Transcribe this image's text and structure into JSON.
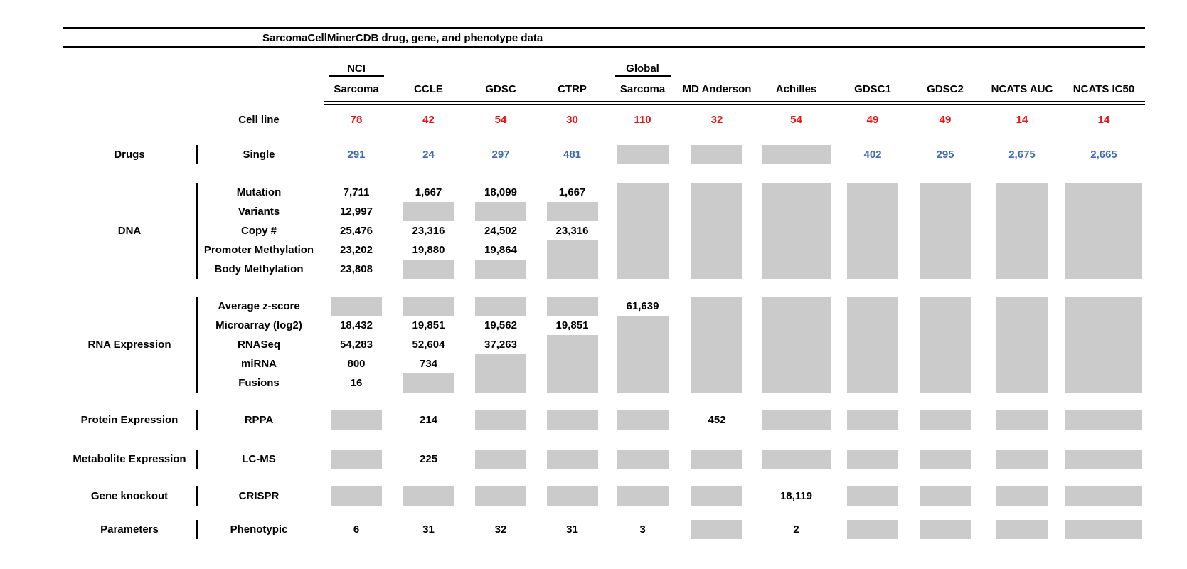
{
  "colors": {
    "cell_line_red": "#f01010",
    "drug_count_blue": "#3f68bb",
    "missing_data_gray": "#cbcbcb",
    "rule_black": "#000000"
  },
  "chart_data": {
    "type": "table",
    "title": "SarcomaCellMinerCDB drug, gene, and phenotype data",
    "row_header_label": "Cell line",
    "gray_box_meaning": "no value shown (gray block)",
    "columns": [
      {
        "group": "NCI",
        "name": "Sarcoma",
        "cell_lines": "78"
      },
      {
        "group": "",
        "name": "CCLE",
        "cell_lines": "42"
      },
      {
        "group": "",
        "name": "GDSC",
        "cell_lines": "54"
      },
      {
        "group": "",
        "name": "CTRP",
        "cell_lines": "30"
      },
      {
        "group": "Global",
        "name": "Sarcoma",
        "cell_lines": "110"
      },
      {
        "group": "",
        "name": "MD Anderson",
        "cell_lines": "32"
      },
      {
        "group": "",
        "name": "Achilles",
        "cell_lines": "54"
      },
      {
        "group": "",
        "name": "GDSC1",
        "cell_lines": "49"
      },
      {
        "group": "",
        "name": "GDSC2",
        "cell_lines": "49"
      },
      {
        "group": "",
        "name": "NCATS AUC",
        "cell_lines": "14"
      },
      {
        "group": "",
        "name": "NCATS IC50",
        "cell_lines": "14"
      }
    ],
    "sections": [
      {
        "category": "Drugs",
        "rows": [
          {
            "label": "Single",
            "color": "blue",
            "cells": [
              "291",
              "24",
              "297",
              "481",
              "GRAY",
              "GRAY",
              "GRAY",
              "402",
              "295",
              "2,675",
              "2,665"
            ]
          }
        ]
      },
      {
        "category": "DNA",
        "rows": [
          {
            "label": "Mutation",
            "cells": [
              "7,711",
              "1,667",
              "18,099",
              "1,667",
              "GRAY",
              "GRAY",
              "GRAY",
              "GRAY",
              "GRAY",
              "GRAY",
              "GRAY"
            ]
          },
          {
            "label": "Variants",
            "cells": [
              "12,997",
              "GRAY",
              "GRAY",
              "GRAY",
              "GRAY",
              "GRAY",
              "GRAY",
              "GRAY",
              "GRAY",
              "GRAY",
              "GRAY"
            ]
          },
          {
            "label": "Copy #",
            "cells": [
              "25,476",
              "23,316",
              "24,502",
              "23,316",
              "GRAY",
              "GRAY",
              "GRAY",
              "GRAY",
              "GRAY",
              "GRAY",
              "GRAY"
            ]
          },
          {
            "label": "Promoter Methylation",
            "cells": [
              "23,202",
              "19,880",
              "19,864",
              "GRAY",
              "GRAY",
              "GRAY",
              "GRAY",
              "GRAY",
              "GRAY",
              "GRAY",
              "GRAY"
            ]
          },
          {
            "label": "Body Methylation",
            "cells": [
              "23,808",
              "GRAY",
              "GRAY",
              "GRAY",
              "GRAY",
              "GRAY",
              "GRAY",
              "GRAY",
              "GRAY",
              "GRAY",
              "GRAY"
            ]
          }
        ]
      },
      {
        "category": "RNA Expression",
        "rows": [
          {
            "label": "Average z-score",
            "cells": [
              "GRAY",
              "GRAY",
              "GRAY",
              "GRAY",
              "61,639",
              "GRAY",
              "GRAY",
              "GRAY",
              "GRAY",
              "GRAY",
              "GRAY"
            ]
          },
          {
            "label": "Microarray (log2)",
            "cells": [
              "18,432",
              "19,851",
              "19,562",
              "19,851",
              "GRAY",
              "GRAY",
              "GRAY",
              "GRAY",
              "GRAY",
              "GRAY",
              "GRAY"
            ]
          },
          {
            "label": "RNASeq",
            "cells": [
              "54,283",
              "52,604",
              "37,263",
              "GRAY",
              "GRAY",
              "GRAY",
              "GRAY",
              "GRAY",
              "GRAY",
              "GRAY",
              "GRAY"
            ]
          },
          {
            "label": "miRNA",
            "cells": [
              "800",
              "734",
              "GRAY",
              "GRAY",
              "GRAY",
              "GRAY",
              "GRAY",
              "GRAY",
              "GRAY",
              "GRAY",
              "GRAY"
            ]
          },
          {
            "label": "Fusions",
            "cells": [
              "16",
              "GRAY",
              "GRAY",
              "GRAY",
              "GRAY",
              "GRAY",
              "GRAY",
              "GRAY",
              "GRAY",
              "GRAY",
              "GRAY"
            ]
          }
        ]
      },
      {
        "category": "Protein Expression",
        "rows": [
          {
            "label": "RPPA",
            "cells": [
              "GRAY",
              "214",
              "GRAY",
              "GRAY",
              "GRAY",
              "452",
              "GRAY",
              "GRAY",
              "GRAY",
              "GRAY",
              "GRAY"
            ]
          }
        ]
      },
      {
        "category": "Metabolite Expression",
        "rows": [
          {
            "label": "LC-MS",
            "cells": [
              "GRAY",
              "225",
              "GRAY",
              "GRAY",
              "GRAY",
              "GRAY",
              "GRAY",
              "GRAY",
              "GRAY",
              "GRAY",
              "GRAY"
            ]
          }
        ]
      },
      {
        "category": "Gene knockout",
        "rows": [
          {
            "label": "CRISPR",
            "cells": [
              "GRAY",
              "GRAY",
              "GRAY",
              "GRAY",
              "GRAY",
              "GRAY",
              "18,119",
              "GRAY",
              "GRAY",
              "GRAY",
              "GRAY"
            ]
          }
        ]
      },
      {
        "category": "Parameters",
        "rows": [
          {
            "label": "Phenotypic",
            "cells": [
              "6",
              "31",
              "32",
              "31",
              "3",
              "GRAY",
              "2",
              "GRAY",
              "GRAY",
              "GRAY",
              "GRAY"
            ]
          }
        ]
      }
    ]
  }
}
